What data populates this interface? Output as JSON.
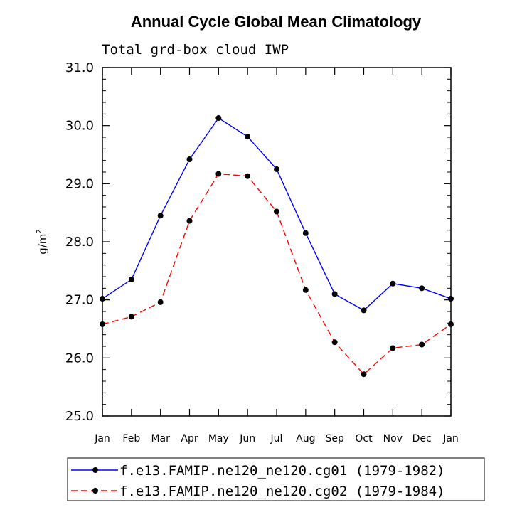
{
  "chart_data": {
    "type": "line",
    "title": "Annual Cycle Global Mean Climatology",
    "subtitle": "Total grd-box cloud IWP",
    "ylabel": "g/m",
    "ylabel_superscript": "2",
    "xlabel": "",
    "ylim": [
      25.0,
      31.0
    ],
    "yticks": [
      "25.0",
      "26.0",
      "27.0",
      "28.0",
      "29.0",
      "30.0",
      "31.0"
    ],
    "categories": [
      "Jan",
      "Feb",
      "Mar",
      "Apr",
      "May",
      "Jun",
      "Jul",
      "Aug",
      "Sep",
      "Oct",
      "Nov",
      "Dec",
      "Jan"
    ],
    "series": [
      {
        "name": "f.e13.FAMIP.ne120_ne120.cg01 (1979-1982)",
        "color": "#0000ff",
        "dash": "solid",
        "values": [
          27.02,
          27.35,
          28.45,
          29.42,
          30.13,
          29.81,
          29.25,
          28.15,
          27.1,
          26.82,
          27.28,
          27.2,
          27.02
        ]
      },
      {
        "name": "f.e13.FAMIP.ne120_ne120.cg02 (1979-1984)",
        "color": "#ff0000",
        "dash": "dashed",
        "values": [
          26.58,
          26.71,
          26.96,
          28.36,
          29.17,
          29.13,
          28.52,
          27.17,
          26.27,
          25.72,
          26.17,
          26.23,
          26.58
        ]
      }
    ]
  }
}
